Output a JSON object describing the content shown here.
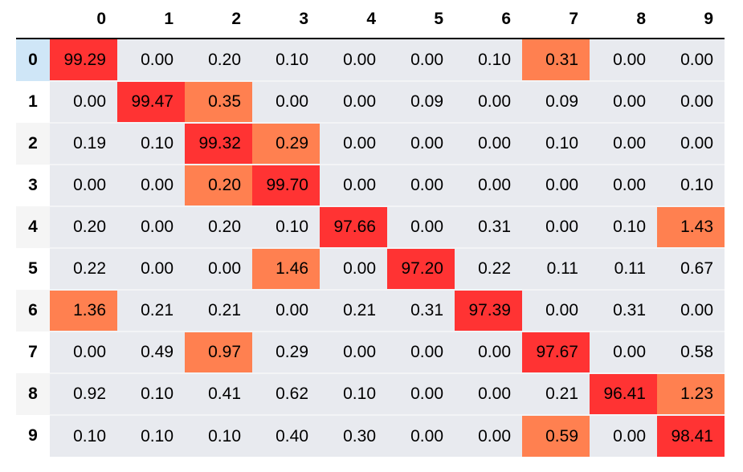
{
  "chart_data": {
    "type": "heatmap",
    "columns": [
      "0",
      "1",
      "2",
      "3",
      "4",
      "5",
      "6",
      "7",
      "8",
      "9"
    ],
    "rows": [
      "0",
      "1",
      "2",
      "3",
      "4",
      "5",
      "6",
      "7",
      "8",
      "9"
    ],
    "values": [
      [
        "99.29",
        "0.00",
        "0.20",
        "0.10",
        "0.00",
        "0.00",
        "0.10",
        "0.31",
        "0.00",
        "0.00"
      ],
      [
        "0.00",
        "99.47",
        "0.35",
        "0.00",
        "0.00",
        "0.09",
        "0.00",
        "0.09",
        "0.00",
        "0.00"
      ],
      [
        "0.19",
        "0.10",
        "99.32",
        "0.29",
        "0.00",
        "0.00",
        "0.00",
        "0.10",
        "0.00",
        "0.00"
      ],
      [
        "0.00",
        "0.00",
        "0.20",
        "99.70",
        "0.00",
        "0.00",
        "0.00",
        "0.00",
        "0.00",
        "0.10"
      ],
      [
        "0.20",
        "0.00",
        "0.20",
        "0.10",
        "97.66",
        "0.00",
        "0.31",
        "0.00",
        "0.10",
        "1.43"
      ],
      [
        "0.22",
        "0.00",
        "0.00",
        "1.46",
        "0.00",
        "97.20",
        "0.22",
        "0.11",
        "0.11",
        "0.67"
      ],
      [
        "1.36",
        "0.21",
        "0.21",
        "0.00",
        "0.21",
        "0.31",
        "97.39",
        "0.00",
        "0.31",
        "0.00"
      ],
      [
        "0.00",
        "0.49",
        "0.97",
        "0.29",
        "0.00",
        "0.00",
        "0.00",
        "97.67",
        "0.00",
        "0.58"
      ],
      [
        "0.92",
        "0.10",
        "0.41",
        "0.62",
        "0.10",
        "0.00",
        "0.00",
        "0.21",
        "96.41",
        "1.23"
      ],
      [
        "0.10",
        "0.10",
        "0.10",
        "0.40",
        "0.30",
        "0.00",
        "0.00",
        "0.59",
        "0.00",
        "98.41"
      ]
    ],
    "highlights": {
      "diagonal_max": {
        "color": "#ff3333"
      },
      "off_diagonal_max": {
        "color": "#ff8050"
      }
    },
    "colors": {
      "cell_background": "#e8eaef",
      "selected_row_header": "#cfe6f7"
    }
  }
}
